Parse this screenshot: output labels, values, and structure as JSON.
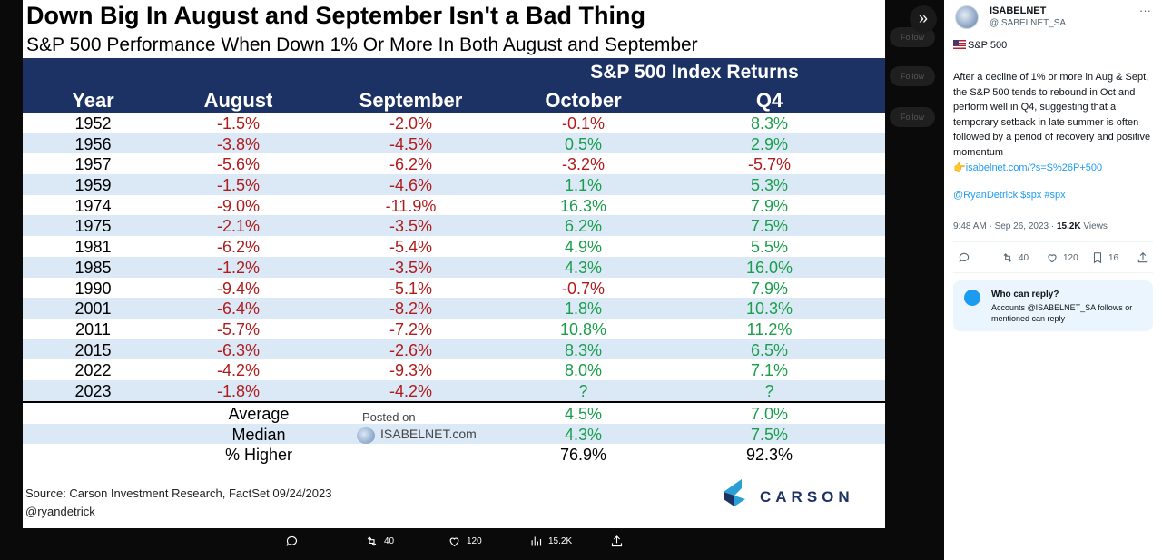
{
  "image": {
    "title": "Down Big In August and September Isn't a Bad Thing",
    "subtitle": "S&P 500 Performance When Down 1% Or More In Both August and September",
    "super_header": "S&P 500 Index Returns",
    "columns": [
      "Year",
      "August",
      "September",
      "October",
      "Q4"
    ],
    "rows": [
      {
        "year": "1952",
        "aug": "-1.5%",
        "sep": "-2.0%",
        "oct": "-0.1%",
        "q4": "8.3%"
      },
      {
        "year": "1956",
        "aug": "-3.8%",
        "sep": "-4.5%",
        "oct": "0.5%",
        "q4": "2.9%"
      },
      {
        "year": "1957",
        "aug": "-5.6%",
        "sep": "-6.2%",
        "oct": "-3.2%",
        "q4": "-5.7%"
      },
      {
        "year": "1959",
        "aug": "-1.5%",
        "sep": "-4.6%",
        "oct": "1.1%",
        "q4": "5.3%"
      },
      {
        "year": "1974",
        "aug": "-9.0%",
        "sep": "-11.9%",
        "oct": "16.3%",
        "q4": "7.9%"
      },
      {
        "year": "1975",
        "aug": "-2.1%",
        "sep": "-3.5%",
        "oct": "6.2%",
        "q4": "7.5%"
      },
      {
        "year": "1981",
        "aug": "-6.2%",
        "sep": "-5.4%",
        "oct": "4.9%",
        "q4": "5.5%"
      },
      {
        "year": "1985",
        "aug": "-1.2%",
        "sep": "-3.5%",
        "oct": "4.3%",
        "q4": "16.0%"
      },
      {
        "year": "1990",
        "aug": "-9.4%",
        "sep": "-5.1%",
        "oct": "-0.7%",
        "q4": "7.9%"
      },
      {
        "year": "2001",
        "aug": "-6.4%",
        "sep": "-8.2%",
        "oct": "1.8%",
        "q4": "10.3%"
      },
      {
        "year": "2011",
        "aug": "-5.7%",
        "sep": "-7.2%",
        "oct": "10.8%",
        "q4": "11.2%"
      },
      {
        "year": "2015",
        "aug": "-6.3%",
        "sep": "-2.6%",
        "oct": "8.3%",
        "q4": "6.5%"
      },
      {
        "year": "2022",
        "aug": "-4.2%",
        "sep": "-9.3%",
        "oct": "8.0%",
        "q4": "7.1%"
      },
      {
        "year": "2023",
        "aug": "-1.8%",
        "sep": "-4.2%",
        "oct": "?",
        "q4": "?"
      }
    ],
    "summary": [
      {
        "label": "Average",
        "oct": "4.5%",
        "q4": "7.0%"
      },
      {
        "label": "Median",
        "oct": "4.3%",
        "q4": "7.5%"
      },
      {
        "label": "% Higher",
        "oct": "76.9%",
        "q4": "92.3%"
      }
    ],
    "posted_on": "Posted on",
    "posted_site": "ISABELNET.com",
    "source": "Source: Carson Investment Research, FactSet 09/24/2023",
    "handle": "@ryandetrick",
    "brand": "CARSON",
    "colors": {
      "header_bg": "#1d3264",
      "stripe": "#dbe9f7",
      "negative": "#b01c1c",
      "positive": "#1a9e4b"
    }
  },
  "viewer_actions": {
    "reply": "",
    "retweets": "40",
    "likes": "120",
    "views": "15.2K"
  },
  "tweet": {
    "display_name": "ISABELNET",
    "handle": "@ISABELNET_SA",
    "flag_text": "S&P 500",
    "body": "After a decline of 1% or more in Aug & Sept, the S&P 500 tends to rebound in Oct and perform well in Q4, suggesting that a temporary setback in late summer is often followed by a period of recovery and positive momentum",
    "link": "isabelnet.com/?s=S%26P+500",
    "tags": "@RyanDetrick $spx #spx",
    "time": "9:48 AM · Sep 26, 2023 · ",
    "views_count": "15.2K",
    "views_label": " Views",
    "retweets": "40",
    "likes": "120",
    "bookmarks": "16",
    "reply_title": "Who can reply?",
    "reply_desc": "Accounts @ISABELNET_SA follows or mentioned can reply",
    "accent": "#1d9bf0"
  },
  "ghost_buttons": [
    "Follow",
    "Follow",
    "Follow"
  ]
}
